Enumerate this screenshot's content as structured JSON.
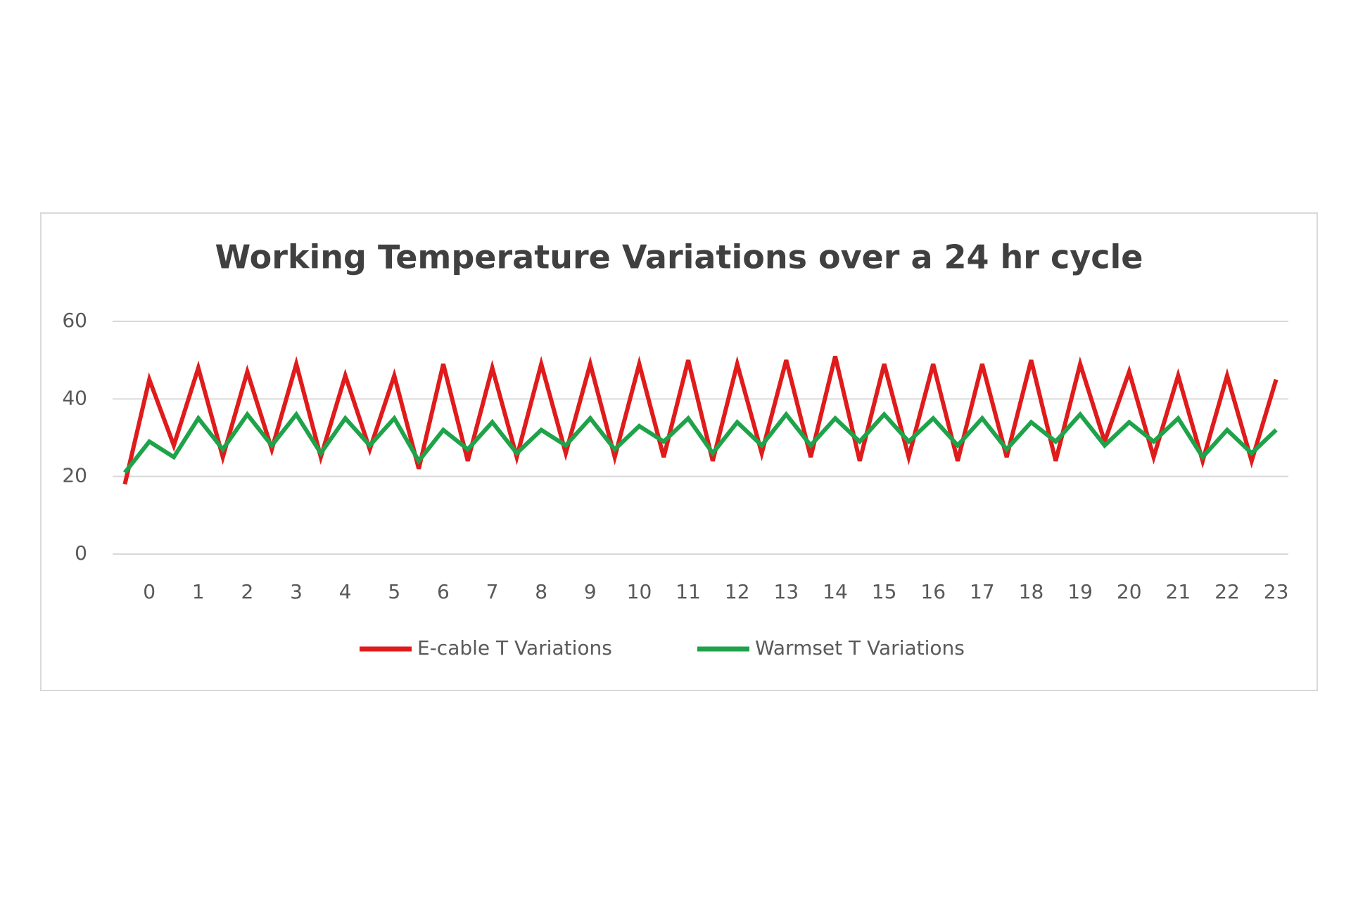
{
  "chart_data": {
    "type": "line",
    "title": "Working Temperature Variations over a 24 hr cycle",
    "categories": [
      null,
      "0",
      null,
      "1",
      null,
      "2",
      null,
      "3",
      null,
      "4",
      null,
      "5",
      null,
      "6",
      null,
      "7",
      null,
      "8",
      null,
      "9",
      null,
      "10",
      null,
      "11",
      null,
      "12",
      null,
      "13",
      null,
      "14",
      null,
      "15",
      null,
      "16",
      null,
      "17",
      null,
      "18",
      null,
      "19",
      null,
      "20",
      null,
      "21",
      null,
      "22",
      null,
      "23"
    ],
    "series": [
      {
        "name": "E-cable T Variations",
        "color": "#e01b1b",
        "values": [
          18,
          45,
          28,
          48,
          25,
          47,
          27,
          49,
          25,
          46,
          27,
          46,
          22,
          49,
          24,
          48,
          25,
          49,
          26,
          49,
          25,
          49,
          25,
          50,
          24,
          49,
          26,
          50,
          25,
          51,
          24,
          49,
          25,
          49,
          24,
          49,
          25,
          50,
          24,
          49,
          29,
          47,
          25,
          46,
          24,
          46,
          24,
          45
        ]
      },
      {
        "name": "Warmset T Variations",
        "color": "#1fa34a",
        "values": [
          21,
          29,
          25,
          35,
          27,
          36,
          28,
          36,
          26,
          35,
          28,
          35,
          24,
          32,
          27,
          34,
          26,
          32,
          28,
          35,
          27,
          33,
          29,
          35,
          26,
          34,
          28,
          36,
          28,
          35,
          29,
          36,
          29,
          35,
          28,
          35,
          27,
          34,
          29,
          36,
          28,
          34,
          29,
          35,
          25,
          32,
          26,
          32
        ]
      }
    ],
    "ylim": [
      0,
      60
    ],
    "yticks": [
      0,
      20,
      40,
      60
    ],
    "grid": true,
    "legend": "bottom"
  }
}
